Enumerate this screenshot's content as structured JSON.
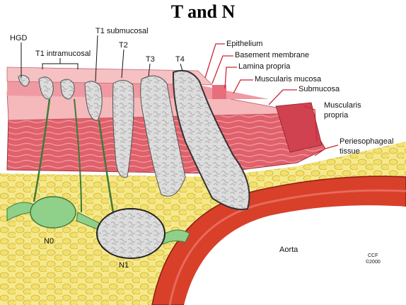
{
  "title": "T and N",
  "labels": {
    "hgd": "HGD",
    "t1_intramucosal": "T1 intramucosal",
    "t1_submucosal": "T1 submucosal",
    "t2": "T2",
    "t3": "T3",
    "t4": "T4",
    "epithelium": "Epithelium",
    "basement_membrane": "Basement membrane",
    "lamina_propria": "Lamina propria",
    "muscularis_mucosa": "Muscularis mucosa",
    "submucosa": "Submucosa",
    "muscularis_propria_1": "Muscularis",
    "muscularis_propria_2": "propria",
    "periesophageal_1": "Periesophageal",
    "periesophageal_2": "tissue",
    "n0": "N0",
    "n1": "N1",
    "aorta": "Aorta",
    "credit_1": "CCF",
    "credit_2": "©2000"
  },
  "colors": {
    "fat": "#f4e57a",
    "muscle": "#d94a55",
    "mucosa": "#f2a9ae",
    "tumor": "#d9d9d9",
    "node_normal": "#8fd08a",
    "aorta": "#d8402a",
    "callout": "#c8283a"
  }
}
